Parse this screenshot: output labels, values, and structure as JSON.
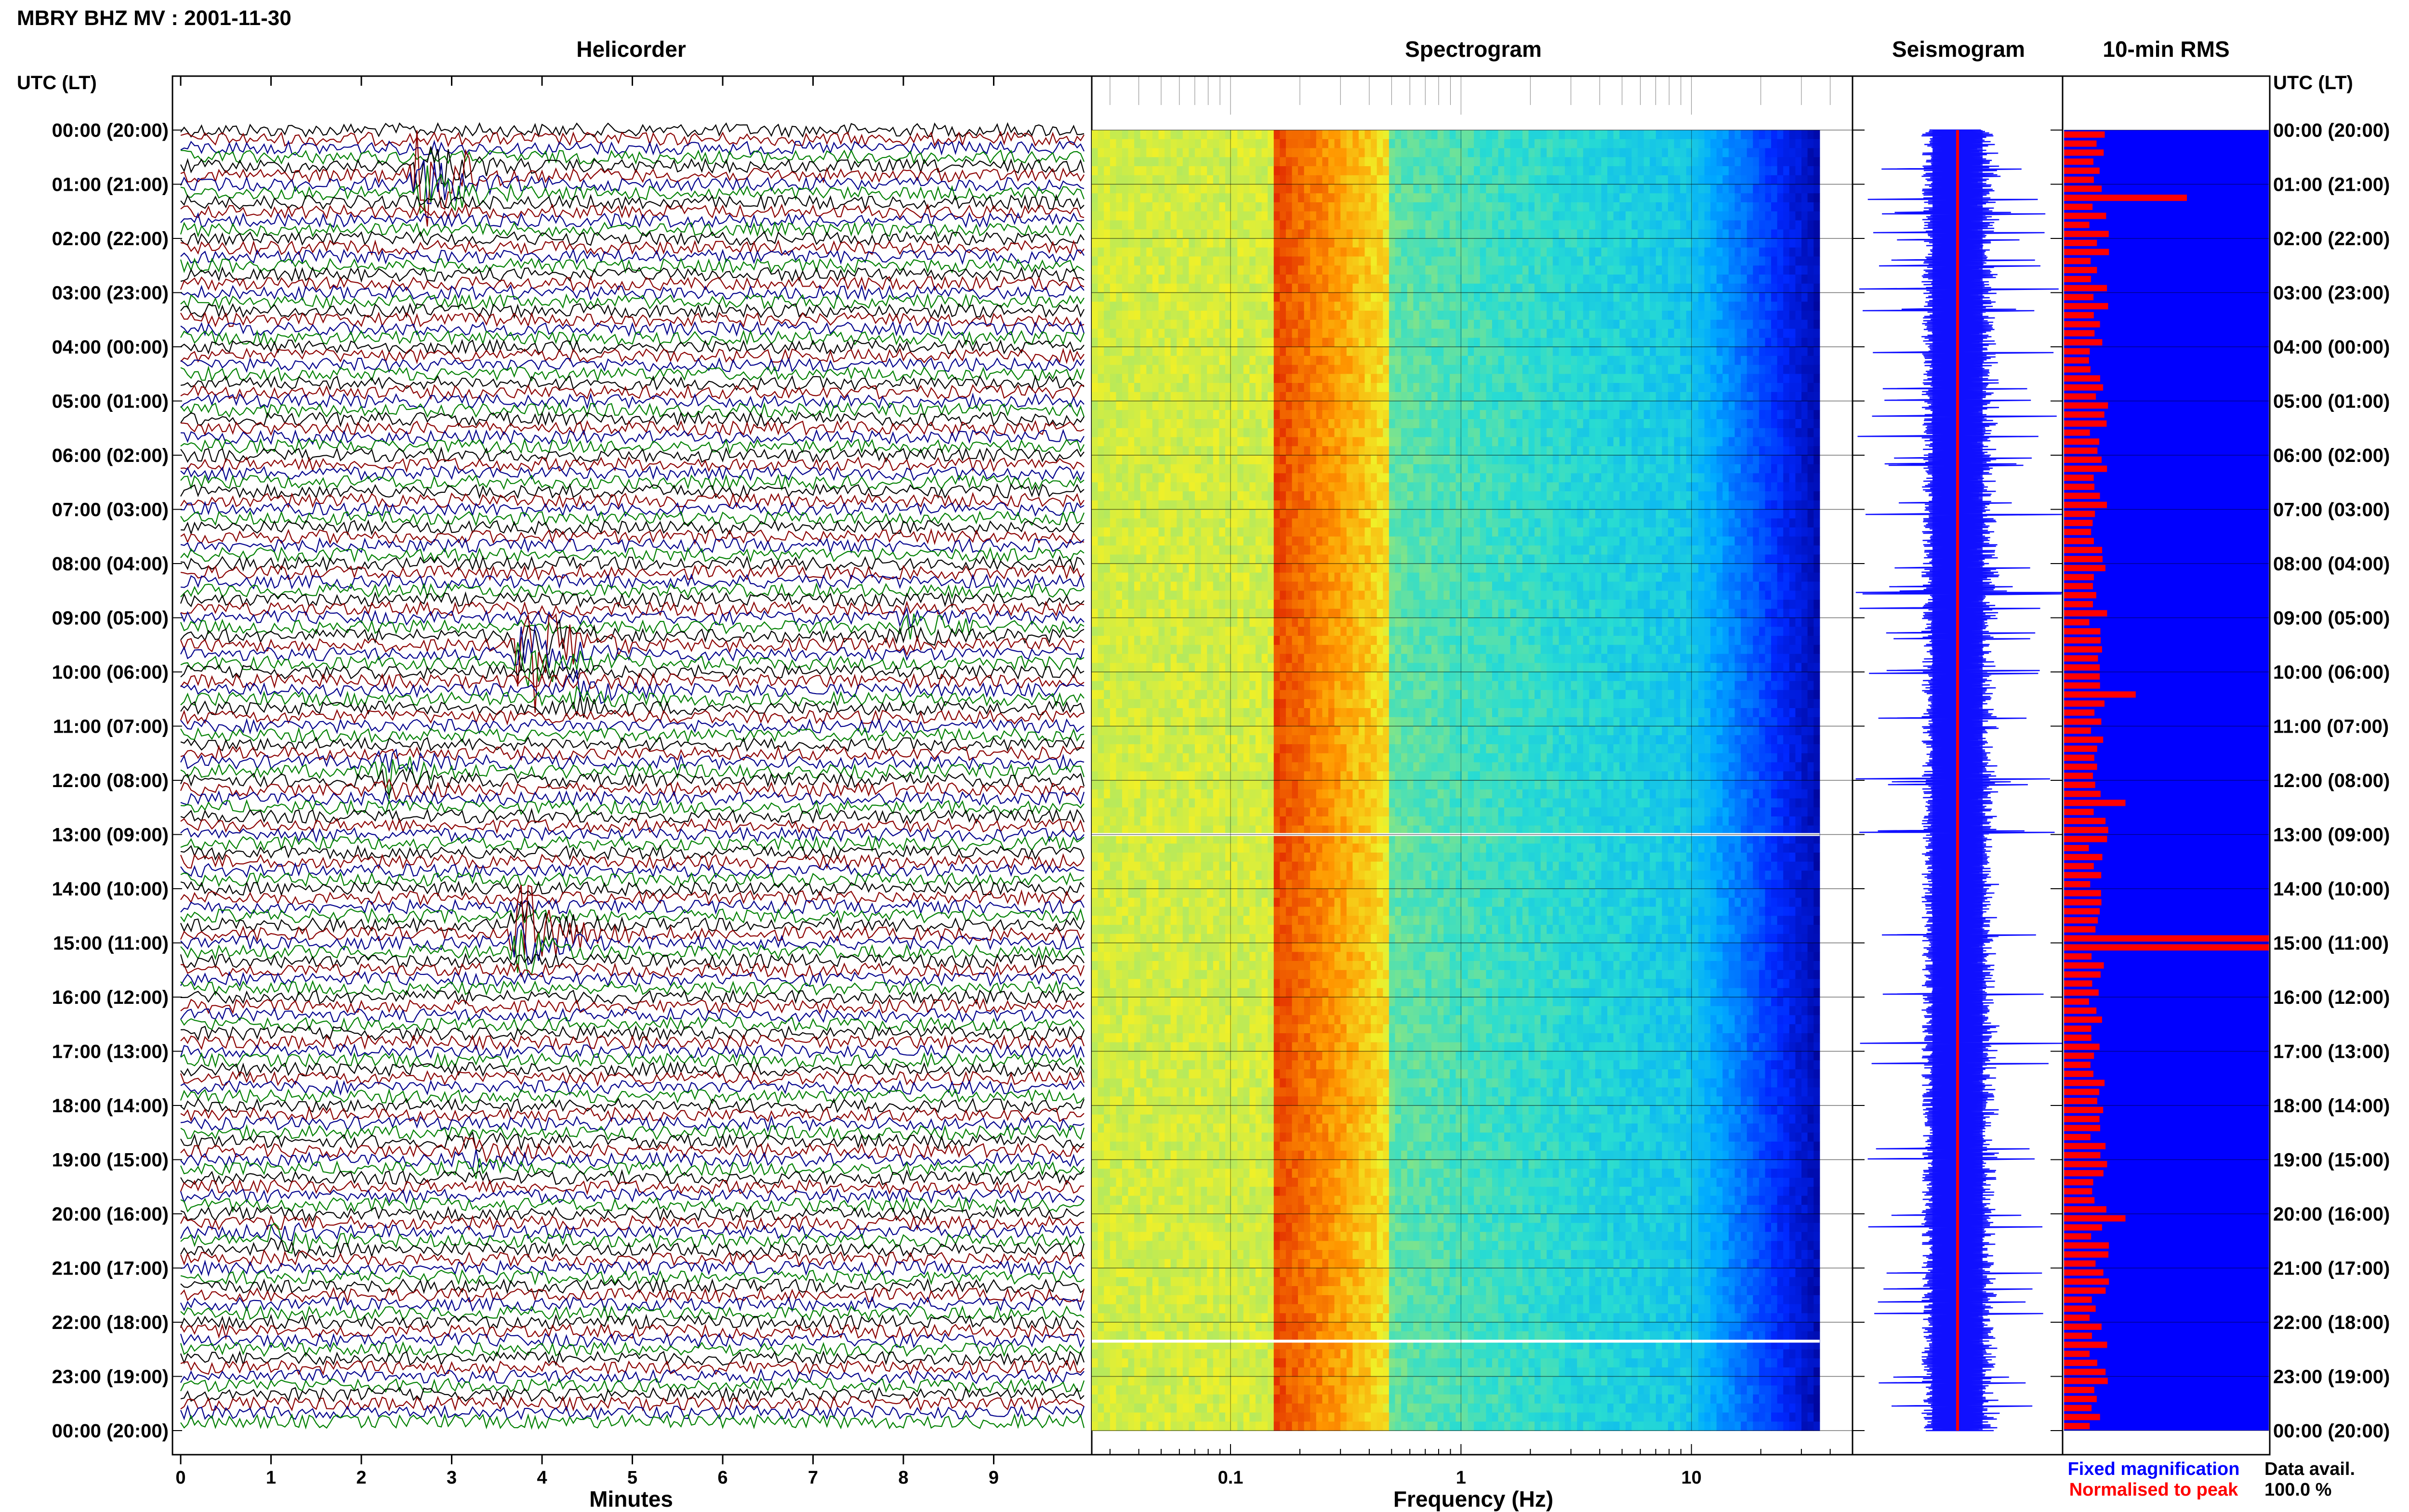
{
  "page": {
    "station_title": "MBRY BHZ MV : 2001-11-30"
  },
  "panels": {
    "helicorder": "Helicorder",
    "spectrogram": "Spectrogram",
    "seismogram": "Seismogram",
    "rms": "10-min RMS"
  },
  "time_axis": {
    "header_left": "UTC (LT)",
    "header_right": "UTC (LT)",
    "labels": [
      "00:00 (20:00)",
      "01:00 (21:00)",
      "02:00 (22:00)",
      "03:00 (23:00)",
      "04:00 (00:00)",
      "05:00 (01:00)",
      "06:00 (02:00)",
      "07:00 (03:00)",
      "08:00 (04:00)",
      "09:00 (05:00)",
      "10:00 (06:00)",
      "11:00 (07:00)",
      "12:00 (08:00)",
      "13:00 (09:00)",
      "14:00 (10:00)",
      "15:00 (11:00)",
      "16:00 (12:00)",
      "17:00 (13:00)",
      "18:00 (14:00)",
      "19:00 (15:00)",
      "20:00 (16:00)",
      "21:00 (17:00)",
      "22:00 (18:00)",
      "23:00 (19:00)",
      "00:00 (20:00)"
    ]
  },
  "footer": {
    "legend_fixed": "Fixed magnification",
    "legend_normalised": "Normalised to peak",
    "data_avail_label": "Data avail.",
    "data_avail_value": "100.0 %"
  },
  "colors": {
    "trace_cycle": [
      "#000000",
      "#8b0000",
      "#00008b",
      "#008000"
    ],
    "seismo_blue": "#1010ff",
    "rms_red": "#ff0000",
    "rms_blue": "#0000ff",
    "legend_blue": "#0000ff",
    "legend_red": "#ff0000"
  },
  "chart_data": [
    {
      "type": "line",
      "panel": "helicorder",
      "title": "Helicorder",
      "xlabel": "Minutes",
      "x_ticks": [
        "0",
        "1",
        "2",
        "3",
        "4",
        "5",
        "6",
        "7",
        "8",
        "9"
      ],
      "xlim": [
        0,
        10
      ],
      "rows_per_hour": 6,
      "hours": 24,
      "events": [
        {
          "utc_hour": 0.9,
          "minute": 2.7,
          "amp": 8,
          "color": 3
        },
        {
          "utc_hour": 9.5,
          "minute": 3.8,
          "amp": 10,
          "color": 2
        },
        {
          "utc_hour": 14.9,
          "minute": 3.8,
          "amp": 6,
          "color": 2
        },
        {
          "utc_hour": 11.9,
          "minute": 2.3,
          "amp": 2.5,
          "color": 2
        },
        {
          "utc_hour": 9.1,
          "minute": 8.1,
          "amp": 1.5,
          "color": 0
        },
        {
          "utc_hour": 10.3,
          "minute": 4.4,
          "amp": 1.8,
          "color": 2
        },
        {
          "utc_hour": 18.9,
          "minute": 3.2,
          "amp": 1.5,
          "color": 1
        },
        {
          "utc_hour": 20.5,
          "minute": 1.0,
          "amp": 1.4,
          "color": 1
        }
      ]
    },
    {
      "type": "heatmap",
      "panel": "spectrogram",
      "title": "Spectrogram",
      "xlabel": "Frequency (Hz)",
      "x_ticks": [
        "0.1",
        "1",
        "10"
      ],
      "xscale": "log",
      "xlim": [
        0.025,
        50
      ],
      "data_max_hz": 36,
      "peak_band_hz": [
        0.15,
        0.5
      ],
      "gaps_utc_hour": [
        13.0,
        22.35
      ]
    },
    {
      "type": "line",
      "panel": "seismogram",
      "title": "Seismogram",
      "series": [
        {
          "name": "Fixed magnification",
          "color": "#1010ff"
        },
        {
          "name": "Normalised to peak",
          "color": "#ff0000"
        }
      ]
    },
    {
      "type": "bar",
      "panel": "rms",
      "title": "10-min RMS",
      "bars_per_hour": 6,
      "peaks": [
        {
          "utc_hour": 1.25,
          "value": 0.6
        },
        {
          "utc_hour": 10.4,
          "value": 0.35
        },
        {
          "utc_hour": 15.0,
          "value": 1.0
        },
        {
          "utc_hour": 12.4,
          "value": 0.3
        },
        {
          "utc_hour": 20.05,
          "value": 0.3
        }
      ],
      "baseline_range": [
        0.12,
        0.22
      ],
      "normalised_fill_color": "#0000ff"
    }
  ]
}
